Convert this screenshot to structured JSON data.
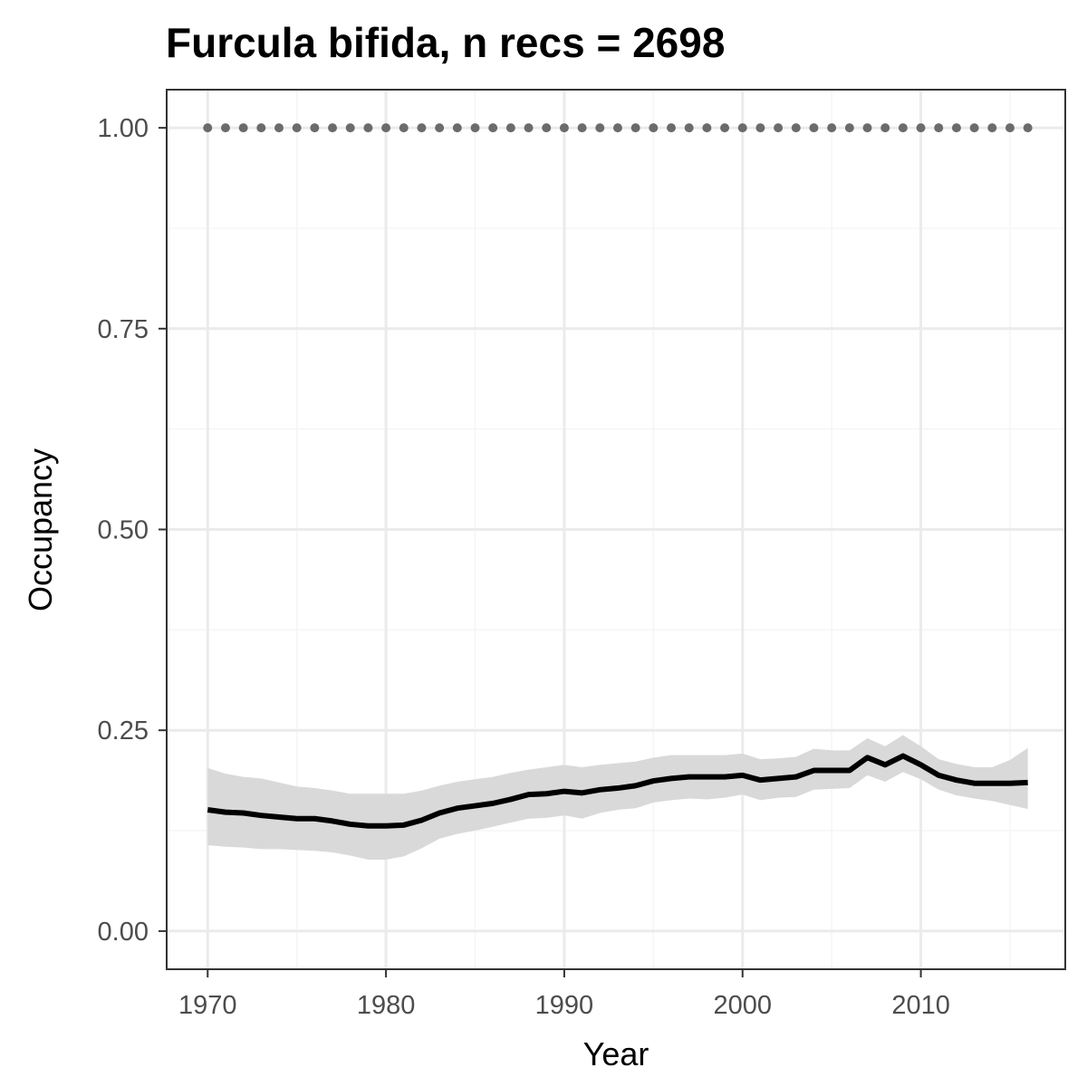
{
  "chart_data": {
    "type": "line",
    "title": "Furcula bifida, n recs = 2698",
    "xlabel": "Year",
    "ylabel": "Occupancy",
    "xlim": [
      1967.7,
      2018.1
    ],
    "ylim": [
      -0.0475,
      1.0475
    ],
    "x_ticks": [
      1970,
      1980,
      1990,
      2000,
      2010
    ],
    "x_tick_labels": [
      "1970",
      "1980",
      "1990",
      "2000",
      "2010"
    ],
    "y_ticks": [
      0.0,
      0.25,
      0.5,
      0.75,
      1.0
    ],
    "y_tick_labels": [
      "0.00",
      "0.25",
      "0.50",
      "0.75",
      "1.00"
    ],
    "grid": true,
    "series": [
      {
        "role": "mean",
        "color": "#000000",
        "x": [
          1970,
          1971,
          1972,
          1973,
          1974,
          1975,
          1976,
          1977,
          1978,
          1979,
          1980,
          1981,
          1982,
          1983,
          1984,
          1985,
          1986,
          1987,
          1988,
          1989,
          1990,
          1991,
          1992,
          1993,
          1994,
          1995,
          1996,
          1997,
          1998,
          1999,
          2000,
          2001,
          2002,
          2003,
          2004,
          2005,
          2006,
          2007,
          2008,
          2009,
          2010,
          2011,
          2012,
          2013,
          2014,
          2015,
          2016
        ],
        "y": [
          0.151,
          0.148,
          0.147,
          0.144,
          0.142,
          0.14,
          0.14,
          0.137,
          0.133,
          0.131,
          0.131,
          0.132,
          0.138,
          0.147,
          0.153,
          0.156,
          0.159,
          0.164,
          0.17,
          0.171,
          0.174,
          0.172,
          0.176,
          0.178,
          0.181,
          0.187,
          0.19,
          0.192,
          0.192,
          0.192,
          0.194,
          0.188,
          0.19,
          0.192,
          0.2,
          0.2,
          0.2,
          0.216,
          0.207,
          0.218,
          0.207,
          0.194,
          0.188,
          0.184,
          0.184,
          0.184,
          0.185
        ]
      },
      {
        "role": "credible-interval",
        "color": "#d9d9d9",
        "x": [
          1970,
          1971,
          1972,
          1973,
          1974,
          1975,
          1976,
          1977,
          1978,
          1979,
          1980,
          1981,
          1982,
          1983,
          1984,
          1985,
          1986,
          1987,
          1988,
          1989,
          1990,
          1991,
          1992,
          1993,
          1994,
          1995,
          1996,
          1997,
          1998,
          1999,
          2000,
          2001,
          2002,
          2003,
          2004,
          2005,
          2006,
          2007,
          2008,
          2009,
          2010,
          2011,
          2012,
          2013,
          2014,
          2015,
          2016
        ],
        "lower": [
          0.107,
          0.105,
          0.104,
          0.102,
          0.102,
          0.101,
          0.1,
          0.098,
          0.094,
          0.089,
          0.089,
          0.093,
          0.103,
          0.115,
          0.121,
          0.125,
          0.13,
          0.135,
          0.14,
          0.141,
          0.144,
          0.14,
          0.147,
          0.151,
          0.153,
          0.16,
          0.163,
          0.165,
          0.164,
          0.166,
          0.17,
          0.163,
          0.166,
          0.167,
          0.176,
          0.177,
          0.178,
          0.194,
          0.186,
          0.198,
          0.189,
          0.176,
          0.169,
          0.165,
          0.162,
          0.157,
          0.152
        ],
        "upper": [
          0.203,
          0.196,
          0.192,
          0.19,
          0.185,
          0.18,
          0.178,
          0.175,
          0.171,
          0.171,
          0.171,
          0.171,
          0.175,
          0.181,
          0.186,
          0.189,
          0.192,
          0.197,
          0.201,
          0.204,
          0.207,
          0.204,
          0.207,
          0.209,
          0.211,
          0.216,
          0.219,
          0.219,
          0.219,
          0.219,
          0.221,
          0.214,
          0.215,
          0.217,
          0.227,
          0.225,
          0.225,
          0.24,
          0.23,
          0.244,
          0.23,
          0.214,
          0.208,
          0.204,
          0.204,
          0.213,
          0.228
        ]
      },
      {
        "role": "reference",
        "color": "#6b6b6b",
        "x": [
          1970,
          1971,
          1972,
          1973,
          1974,
          1975,
          1976,
          1977,
          1978,
          1979,
          1980,
          1981,
          1982,
          1983,
          1984,
          1985,
          1986,
          1987,
          1988,
          1989,
          1990,
          1991,
          1992,
          1993,
          1994,
          1995,
          1996,
          1997,
          1998,
          1999,
          2000,
          2001,
          2002,
          2003,
          2004,
          2005,
          2006,
          2007,
          2008,
          2009,
          2010,
          2011,
          2012,
          2013,
          2014,
          2015,
          2016
        ],
        "y": [
          1,
          1,
          1,
          1,
          1,
          1,
          1,
          1,
          1,
          1,
          1,
          1,
          1,
          1,
          1,
          1,
          1,
          1,
          1,
          1,
          1,
          1,
          1,
          1,
          1,
          1,
          1,
          1,
          1,
          1,
          1,
          1,
          1,
          1,
          1,
          1,
          1,
          1,
          1,
          1,
          1,
          1,
          1,
          1,
          1,
          1,
          1
        ]
      }
    ],
    "colors": {
      "panel_border": "#333333",
      "grid_major": "#ebebeb",
      "grid_minor": "#f5f5f5",
      "ribbon": "#d9d9d9",
      "line": "#000000",
      "reference_points": "#6b6b6b",
      "tick_text": "#4d4d4d"
    }
  }
}
